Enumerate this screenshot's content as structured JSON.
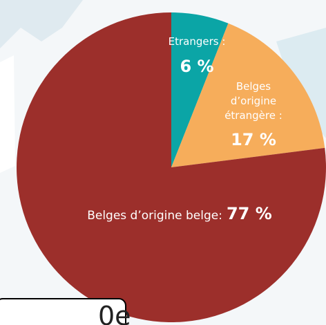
{
  "chart_data": {
    "type": "pie",
    "categories": [
      "Etrangers :",
      "Belges d’origine étrangère :",
      "Belges d’origine belge:"
    ],
    "values": [
      6,
      17,
      77
    ],
    "value_labels": [
      "6 %",
      "17 %",
      "77 %"
    ],
    "colors": [
      "#0ba5a6",
      "#f6ad5b",
      "#9c2f2b"
    ]
  },
  "overlay_text": "0e"
}
